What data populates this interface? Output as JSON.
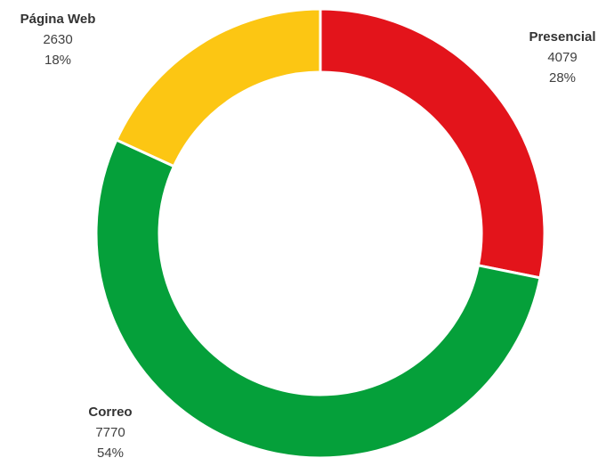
{
  "chart_data": {
    "type": "donut",
    "categories": [
      "Presencial",
      "Correo",
      "Página Web"
    ],
    "values": [
      4079,
      7770,
      2630
    ],
    "percentages": [
      "28%",
      "54%",
      "18%"
    ],
    "colors": [
      "#e3141b",
      "#05a03a",
      "#fcc613"
    ]
  }
}
